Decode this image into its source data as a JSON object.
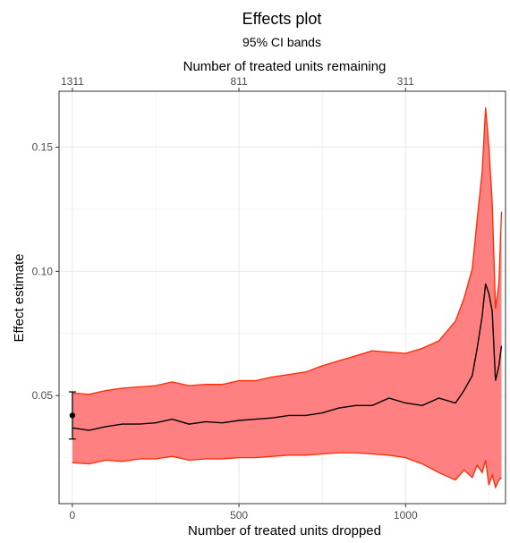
{
  "chart_data": {
    "type": "line",
    "title": "Effects plot",
    "subtitle": "95% CI bands",
    "xlabel": "Number of treated units dropped",
    "ylabel": "Effect estimate",
    "x2label": "Number of treated units remaining",
    "xlim": [
      -40,
      1300
    ],
    "ylim": [
      0.0065,
      0.1725
    ],
    "x_ticks": [
      0,
      500,
      1000
    ],
    "x_tick_labels": [
      "0",
      "500",
      "1000"
    ],
    "x2_ticks": [
      0,
      500,
      1000
    ],
    "x2_tick_labels": [
      "1311",
      "811",
      "311"
    ],
    "y_ticks": [
      0.05,
      0.1,
      0.15
    ],
    "y_tick_labels": [
      "0.05",
      "0.10",
      "0.15"
    ],
    "grid": true,
    "colors": {
      "band_fill": "#ff8080",
      "band_edge": "#ff2a00",
      "estimate": "#000000",
      "panel_border": "#333333",
      "grid": "#ebebeb"
    },
    "initial_estimate": {
      "x": 0,
      "y": 0.042,
      "ci_low": 0.0325,
      "ci_high": 0.0515
    },
    "series": [
      {
        "x": [
          0,
          50,
          100,
          150,
          200,
          250,
          300,
          350,
          400,
          450,
          500,
          550,
          600,
          650,
          700,
          750,
          800,
          850,
          900,
          950,
          1000,
          1050,
          1100,
          1150,
          1175,
          1200,
          1215,
          1230,
          1240,
          1250,
          1260,
          1270,
          1280,
          1288
        ],
        "y": [
          0.037,
          0.036,
          0.0375,
          0.0385,
          0.0385,
          0.039,
          0.0405,
          0.0385,
          0.0395,
          0.039,
          0.04,
          0.0405,
          0.041,
          0.042,
          0.042,
          0.043,
          0.045,
          0.046,
          0.046,
          0.049,
          0.047,
          0.046,
          0.049,
          0.047,
          0.052,
          0.058,
          0.069,
          0.082,
          0.095,
          0.091,
          0.084,
          0.056,
          0.062,
          0.07
        ],
        "lower": [
          0.023,
          0.0225,
          0.024,
          0.0235,
          0.0245,
          0.0245,
          0.0255,
          0.024,
          0.0245,
          0.0245,
          0.025,
          0.025,
          0.0255,
          0.026,
          0.026,
          0.0265,
          0.027,
          0.027,
          0.0265,
          0.026,
          0.025,
          0.0225,
          0.019,
          0.016,
          0.02,
          0.017,
          0.022,
          0.019,
          0.024,
          0.014,
          0.018,
          0.013,
          0.016,
          0.017
        ],
        "upper": [
          0.051,
          0.0505,
          0.052,
          0.053,
          0.0535,
          0.054,
          0.0555,
          0.054,
          0.0545,
          0.0545,
          0.056,
          0.056,
          0.0575,
          0.0585,
          0.0595,
          0.062,
          0.064,
          0.066,
          0.068,
          0.0675,
          0.067,
          0.069,
          0.072,
          0.08,
          0.089,
          0.101,
          0.121,
          0.14,
          0.166,
          0.15,
          0.128,
          0.085,
          0.095,
          0.124
        ]
      }
    ]
  }
}
